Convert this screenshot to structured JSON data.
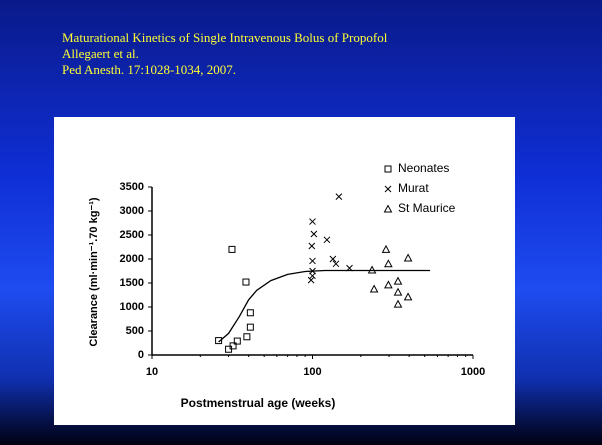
{
  "slide": {
    "title_lines": [
      "Maturational Kinetics of Single Intravenous Bolus of Propofol",
      "Allegaert et al.",
      "Ped Anesth. 17:1028-1034, 2007."
    ]
  },
  "chart_data": {
    "type": "scatter",
    "xlabel": "Postmenstrual age (weeks)",
    "ylabel": "Clearance (ml·min⁻¹.70 kg⁻¹)",
    "xscale": "log",
    "xlim": [
      10,
      1000
    ],
    "xticks": [
      10,
      100,
      1000
    ],
    "ylim": [
      0,
      3500
    ],
    "yticks": [
      0,
      500,
      1000,
      1500,
      2000,
      2500,
      3000,
      3500
    ],
    "legend": "upper right",
    "series": [
      {
        "name": "Neonates",
        "marker": "square",
        "color": "#000000",
        "x": [
          26,
          30,
          32,
          34,
          39,
          41,
          41,
          38.5,
          31.5
        ],
        "values": [
          300,
          120,
          190,
          290,
          380,
          580,
          880,
          1520,
          2200
        ]
      },
      {
        "name": "Murat",
        "marker": "x",
        "color": "#000000",
        "x": [
          100,
          102,
          99,
          123,
          100,
          100,
          98,
          146,
          134,
          140,
          170,
          100
        ],
        "values": [
          2780,
          2520,
          2270,
          2400,
          1960,
          1750,
          1560,
          3300,
          2000,
          1900,
          1810,
          1650
        ]
      },
      {
        "name": "St Maurice",
        "marker": "triangle",
        "color": "#000000",
        "x": [
          287,
          297,
          394,
          235,
          297,
          341,
          242,
          341,
          394,
          341
        ],
        "values": [
          2200,
          1900,
          2020,
          1770,
          1460,
          1540,
          1375,
          1310,
          1210,
          1060
        ]
      }
    ],
    "fit_line": {
      "color": "#000000",
      "x": [
        26,
        30,
        35,
        40,
        45,
        55,
        70,
        90,
        120,
        540
      ],
      "values": [
        270,
        450,
        800,
        1150,
        1350,
        1550,
        1680,
        1740,
        1760,
        1760
      ]
    }
  }
}
